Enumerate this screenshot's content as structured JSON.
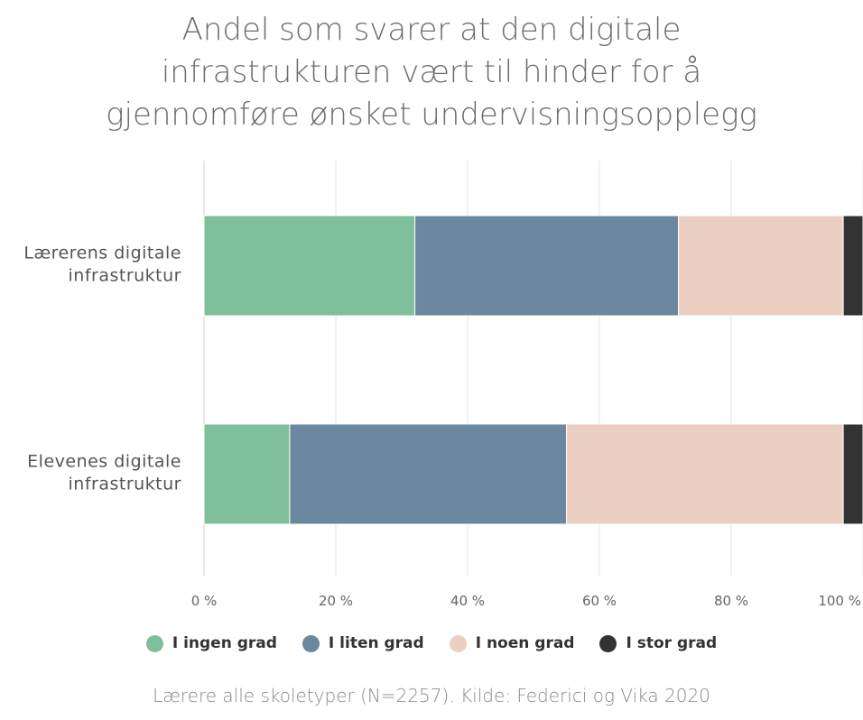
{
  "title_lines": [
    "Andel som svarer at den digitale",
    "infrastrukturen vært til hinder for å",
    "gjennomføre ønsket undervisningsopplegg"
  ],
  "source": "Lærere alle skoletyper (N=2257). Kilde: Federici og Vika 2020",
  "legend": [
    {
      "label": "I ingen grad",
      "color": "#7fbf9b"
    },
    {
      "label": "I liten grad",
      "color": "#6b889e"
    },
    {
      "label": "I noen grad",
      "color": "#ebcfc2"
    },
    {
      "label": "I stor grad",
      "color": "#333333"
    }
  ],
  "chart_data": {
    "type": "bar",
    "orientation": "horizontal",
    "stacked": true,
    "categories": [
      [
        "Lærerens digitale",
        "infrastruktur"
      ],
      [
        "Elevenes digitale",
        "infrastruktur"
      ]
    ],
    "series": [
      {
        "name": "I ingen grad",
        "values": [
          32,
          13
        ]
      },
      {
        "name": "I liten grad",
        "values": [
          40,
          42
        ]
      },
      {
        "name": "I noen grad",
        "values": [
          25,
          42
        ]
      },
      {
        "name": "I stor grad",
        "values": [
          3,
          3
        ]
      }
    ],
    "xlim": [
      0,
      100
    ],
    "xticks": [
      {
        "value": 0,
        "label": "0 %"
      },
      {
        "value": 20,
        "label": "20 %"
      },
      {
        "value": 40,
        "label": "40 %"
      },
      {
        "value": 60,
        "label": "60 %"
      },
      {
        "value": 80,
        "label": "80 %"
      },
      {
        "value": 100,
        "label": "100 %"
      }
    ],
    "grid": true,
    "legend_position": "bottom"
  }
}
